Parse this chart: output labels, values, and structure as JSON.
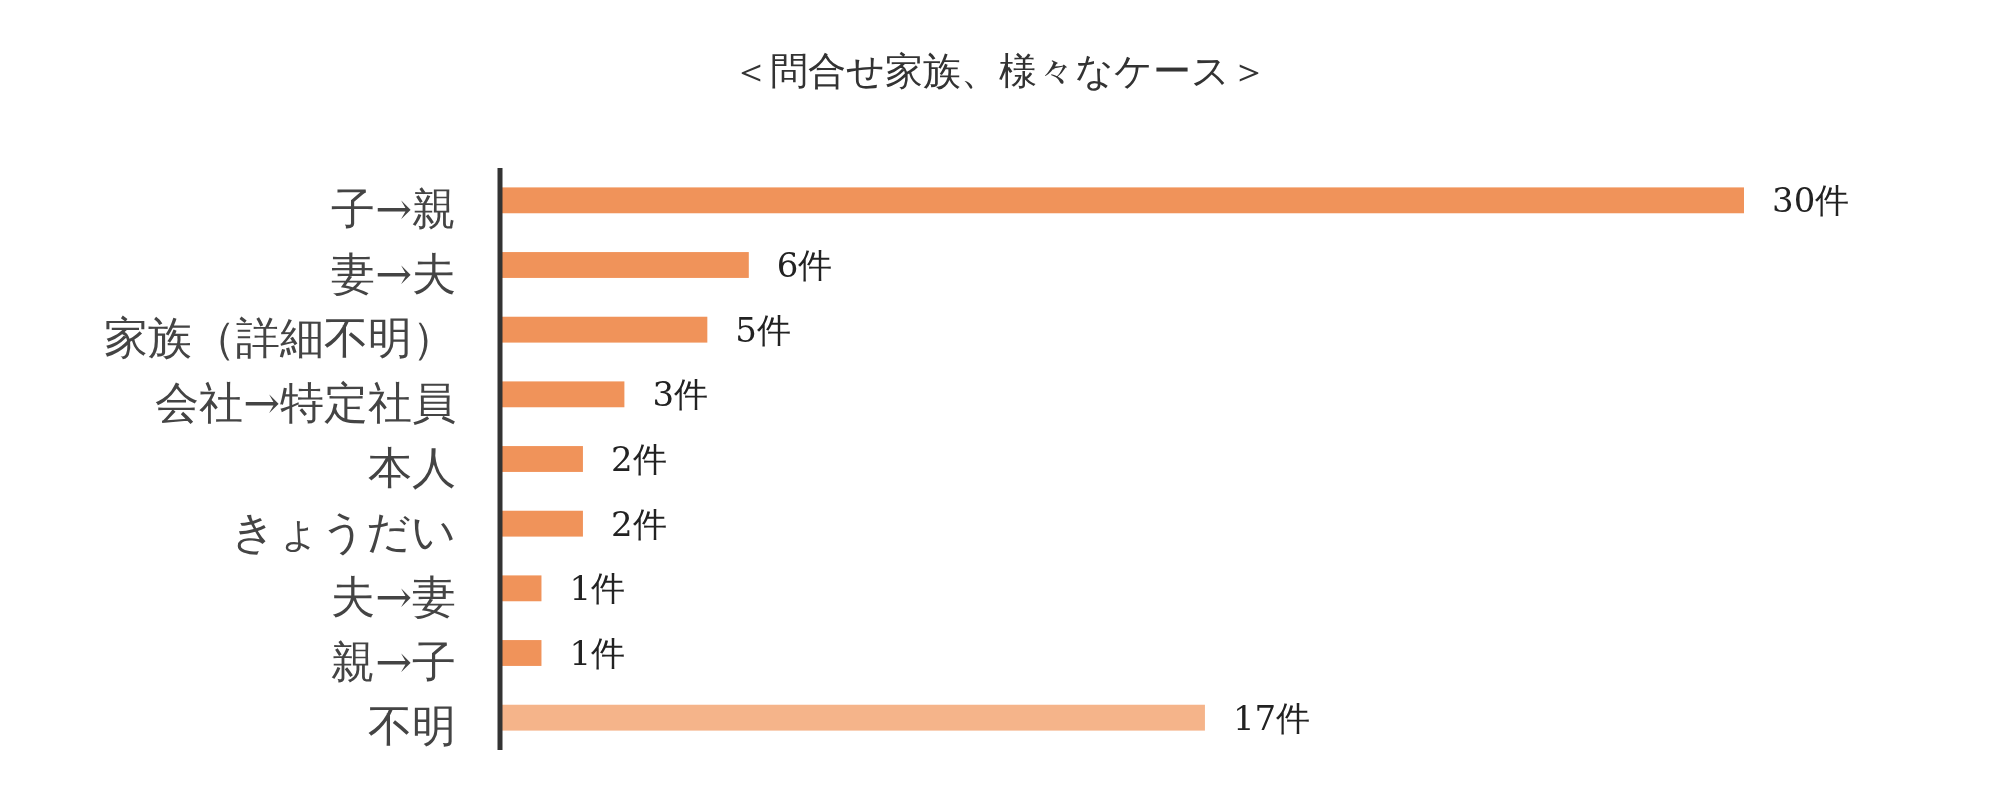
{
  "chart_data": {
    "type": "bar",
    "orientation": "horizontal",
    "title": "＜問合せ家族、様々なケース＞",
    "categories": [
      "子→親",
      "妻→夫",
      "家族（詳細不明）",
      "会社→特定社員",
      "本人",
      "きょうだい",
      "夫→妻",
      "親→子",
      "不明"
    ],
    "values": [
      30,
      6,
      5,
      3,
      2,
      2,
      1,
      1,
      17
    ],
    "colors": [
      "#f0935a",
      "#f0935a",
      "#f0935a",
      "#f0935a",
      "#f0935a",
      "#f0935a",
      "#f0935a",
      "#f0935a",
      "#f5b48a"
    ],
    "value_labels": [
      "30件",
      "6件",
      "5件",
      "3件",
      "2件",
      "2件",
      "1件",
      "1件",
      "17件"
    ]
  }
}
